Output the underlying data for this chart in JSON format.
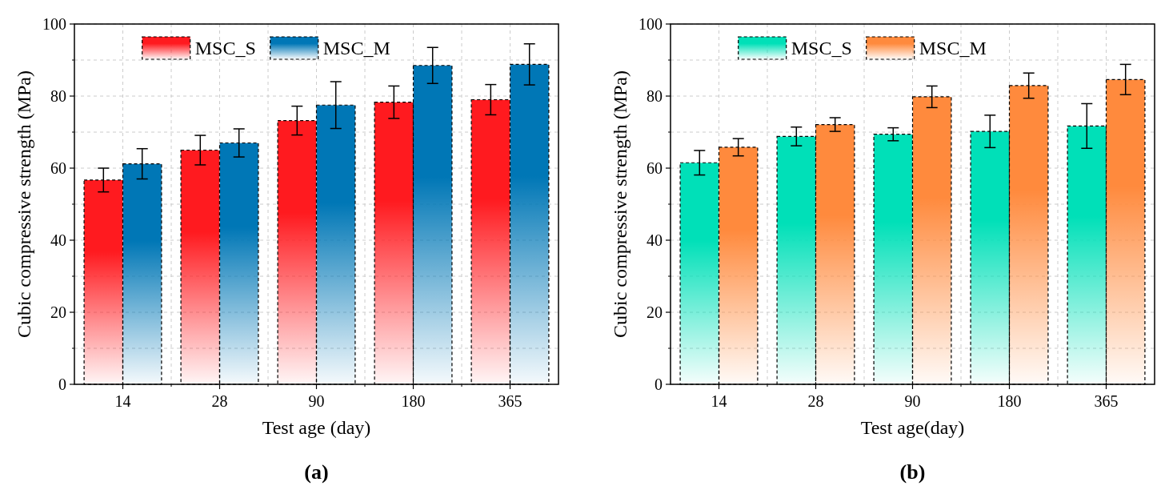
{
  "chart_data": [
    {
      "type": "bar",
      "categories": [
        "14",
        "28",
        "90",
        "180",
        "365"
      ],
      "xlabel": "Test age (day)",
      "ylabel": "Cubic compressive strength (MPa)",
      "ylim": [
        0,
        100
      ],
      "yticks": [
        0,
        20,
        40,
        60,
        80,
        100
      ],
      "grid": true,
      "legend": "top",
      "annotations": [
        "(a)"
      ],
      "series": [
        {
          "name": "MSC_S",
          "color": "#ff1a1f",
          "values": [
            56.7,
            65.0,
            73.2,
            78.3,
            79.0
          ],
          "errors": [
            3.3,
            4.1,
            4.0,
            4.5,
            4.2
          ]
        },
        {
          "name": "MSC_M",
          "color": "#0077b6",
          "values": [
            61.2,
            67.0,
            77.5,
            88.5,
            88.8
          ],
          "errors": [
            4.2,
            3.9,
            6.5,
            5.0,
            5.7
          ]
        }
      ]
    },
    {
      "type": "bar",
      "categories": [
        "14",
        "28",
        "90",
        "180",
        "365"
      ],
      "xlabel": "Test age(day)",
      "ylabel": "Cubic compressive strength (MPa)",
      "ylim": [
        0,
        100
      ],
      "yticks": [
        0,
        20,
        40,
        60,
        80,
        100
      ],
      "grid": true,
      "legend": "top",
      "annotations": [
        "(b)"
      ],
      "series": [
        {
          "name": "MSC_S",
          "color": "#00e0b8",
          "values": [
            61.5,
            68.8,
            69.4,
            70.2,
            71.7
          ],
          "errors": [
            3.4,
            2.6,
            1.8,
            4.5,
            6.2
          ]
        },
        {
          "name": "MSC_M",
          "color": "#ff8a3d",
          "values": [
            65.8,
            72.1,
            79.8,
            82.9,
            84.6
          ],
          "errors": [
            2.4,
            1.9,
            3.0,
            3.5,
            4.2
          ]
        }
      ]
    }
  ]
}
